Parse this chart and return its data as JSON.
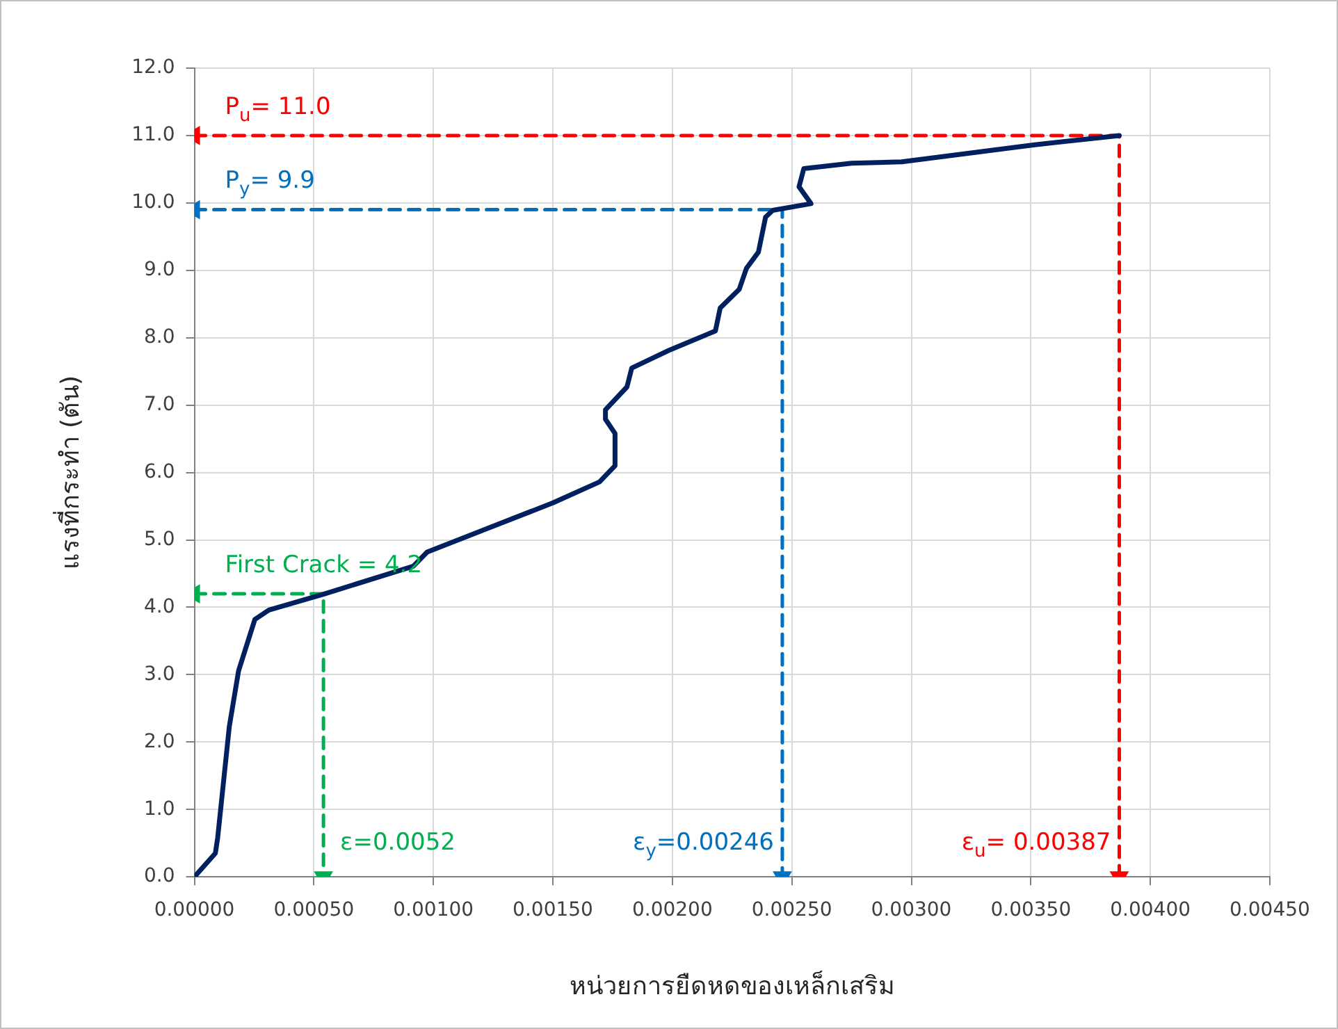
{
  "chart_data": {
    "type": "line",
    "xlabel": "หน่วยการยืดหดของเหล็กเสริม",
    "ylabel": "แรงที่กระทำ (ตัน)",
    "xlim": [
      0,
      0.0045
    ],
    "xticks": [
      {
        "value": 0,
        "label": "0.00000"
      },
      {
        "value": 0.0005,
        "label": "0.00050"
      },
      {
        "value": 0.001,
        "label": "0.00100"
      },
      {
        "value": 0.0015,
        "label": "0.00150"
      },
      {
        "value": 0.002,
        "label": "0.00200"
      },
      {
        "value": 0.0025,
        "label": "0.00250"
      },
      {
        "value": 0.003,
        "label": "0.00300"
      },
      {
        "value": 0.0035,
        "label": "0.00350"
      },
      {
        "value": 0.004,
        "label": "0.00400"
      },
      {
        "value": 0.0045,
        "label": "0.00450"
      }
    ],
    "ylim": [
      0,
      12
    ],
    "yticks": [
      {
        "value": 0,
        "label": "0.0"
      },
      {
        "value": 1,
        "label": "1.0"
      },
      {
        "value": 2,
        "label": "2.0"
      },
      {
        "value": 3,
        "label": "3.0"
      },
      {
        "value": 4,
        "label": "4.0"
      },
      {
        "value": 5,
        "label": "5.0"
      },
      {
        "value": 6,
        "label": "6.0"
      },
      {
        "value": 7,
        "label": "7.0"
      },
      {
        "value": 8,
        "label": "8.0"
      },
      {
        "value": 9,
        "label": "9.0"
      },
      {
        "value": 10,
        "label": "10.0"
      },
      {
        "value": 11,
        "label": "11.0"
      },
      {
        "value": 12,
        "label": "12.0"
      }
    ],
    "grid": true,
    "legend": false,
    "series": [
      {
        "color": "#002060",
        "line_style": "solid",
        "marker": "none",
        "x": [
          0,
          8.77e-05,
          9.74e-05,
          0.000146,
          0.000185,
          0.000253,
          0.000312,
          0.000545,
          0.000916,
          0.000974,
          0.0015,
          0.001695,
          0.00176,
          0.00176,
          0.00172,
          0.00172,
          0.00181,
          0.00183,
          0.00199,
          0.00218,
          0.0022,
          0.00228,
          0.00231,
          0.00236,
          0.00239,
          0.00242,
          0.00258,
          0.00253,
          0.00255,
          0.00275,
          0.00296,
          0.00351,
          0.00387
        ],
        "values": [
          0,
          0.35,
          0.58,
          2.23,
          3.06,
          3.82,
          3.96,
          4.2,
          4.61,
          4.82,
          5.55,
          5.86,
          6.1,
          6.58,
          6.79,
          6.93,
          7.27,
          7.55,
          7.82,
          8.1,
          8.44,
          8.72,
          9.03,
          9.27,
          9.79,
          9.89,
          9.99,
          10.24,
          10.51,
          10.59,
          10.61,
          10.86,
          11.0
        ]
      },
      {
        "color": "#ff0000",
        "line_style": "dashed",
        "marker": "triangle",
        "x": [
          0,
          0.00387,
          0.00387
        ],
        "values": [
          11.0,
          11.0,
          0
        ]
      },
      {
        "color": "#0070c0",
        "line_style": "dashed",
        "marker": "triangle",
        "x": [
          0,
          0.00246,
          0.00246
        ],
        "values": [
          9.9,
          9.9,
          0
        ]
      },
      {
        "color": "#00b050",
        "line_style": "dashed",
        "marker": "triangle",
        "x": [
          0,
          0.00054,
          0.00054
        ],
        "values": [
          4.2,
          4.2,
          0
        ]
      }
    ],
    "annotations": [
      {
        "text": "P$_{u}$= 11.0",
        "x": 0,
        "y": 11.0
      },
      {
        "text": "ε$_{u}$= 0.00387",
        "x": 0.00387,
        "y": 0
      },
      {
        "text": "P$_{y}$= 9.9",
        "x": 0,
        "y": 9.9
      },
      {
        "text": "ε$_{y}$=0.00246",
        "x": 0.00246,
        "y": 0
      },
      {
        "text": "First Crack = 4.2",
        "x": 0,
        "y": 4.2
      },
      {
        "text": "ε=0.0052",
        "x": 0.00054,
        "y": 0
      }
    ]
  }
}
